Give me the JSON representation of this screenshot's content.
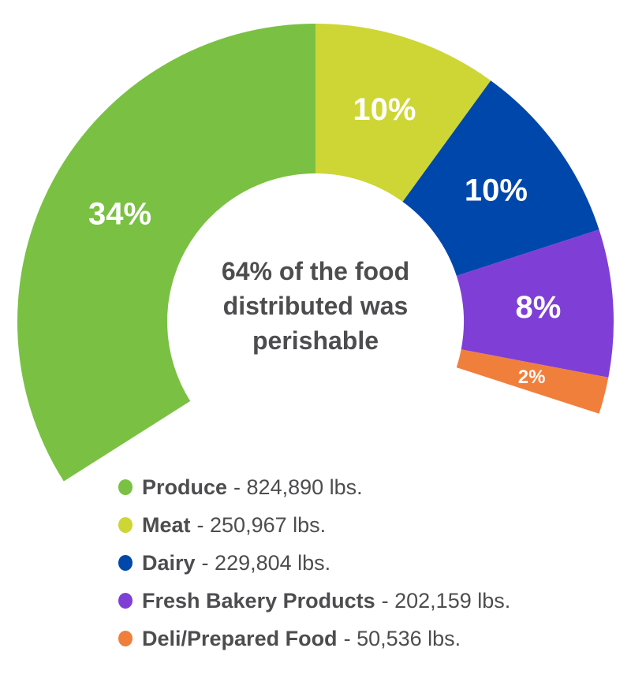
{
  "chart_data": {
    "type": "pie",
    "variant": "partial-donut",
    "center_label": [
      "64% of the food",
      "distributed was",
      "perishable"
    ],
    "total_percent": 64,
    "slices": [
      {
        "name": "Produce",
        "percent": 34,
        "label": "34%",
        "value": "824,890 lbs.",
        "color": "#7ac143"
      },
      {
        "name": "Meat",
        "percent": 10,
        "label": "10%",
        "value": "250,967 lbs.",
        "color": "#cdd635"
      },
      {
        "name": "Dairy",
        "percent": 10,
        "label": "10%",
        "value": "229,804 lbs.",
        "color": "#0047ab"
      },
      {
        "name": "Fresh Bakery Products",
        "percent": 8,
        "label": "8%",
        "value": "202,159 lbs.",
        "color": "#7f3fd6"
      },
      {
        "name": "Deli/Prepared Food",
        "percent": 2,
        "label": "2%",
        "value": "50,536 lbs.",
        "color": "#f07f3c"
      }
    ],
    "legend_placement": "bottom"
  }
}
